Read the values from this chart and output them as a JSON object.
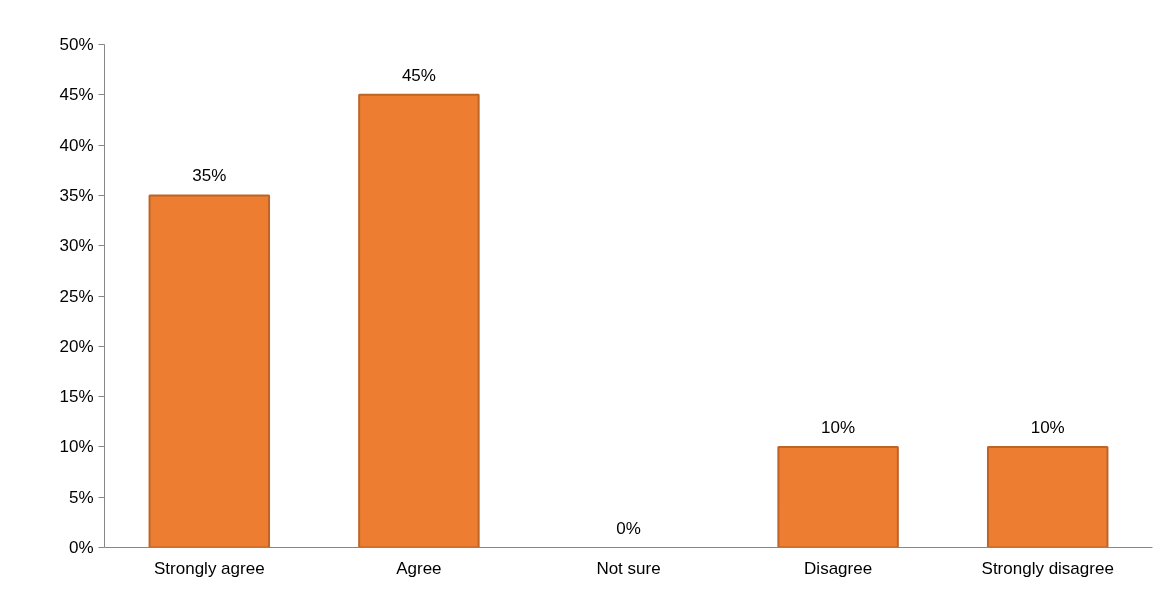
{
  "chart_data": {
    "type": "bar",
    "categories": [
      "Strongly agree",
      "Agree",
      "Not sure",
      "Disagree",
      "Strongly disagree"
    ],
    "series": [
      {
        "color": "#ed7d31",
        "values": [
          35,
          45,
          0,
          10,
          10
        ]
      }
    ],
    "value_labels": [
      "35%",
      "45%",
      "0%",
      "10%",
      "10%"
    ],
    "ylim": [
      0,
      50
    ],
    "yticks": [
      {
        "value": 0,
        "label": "0%"
      },
      {
        "value": 5,
        "label": "5%"
      },
      {
        "value": 10,
        "label": "10%"
      },
      {
        "value": 15,
        "label": "15%"
      },
      {
        "value": 20,
        "label": "20%"
      },
      {
        "value": 25,
        "label": "25%"
      },
      {
        "value": 30,
        "label": "30%"
      },
      {
        "value": 35,
        "label": "35%"
      },
      {
        "value": 40,
        "label": "40%"
      },
      {
        "value": 45,
        "label": "45%"
      },
      {
        "value": 50,
        "label": "50%"
      }
    ],
    "grid": false
  }
}
